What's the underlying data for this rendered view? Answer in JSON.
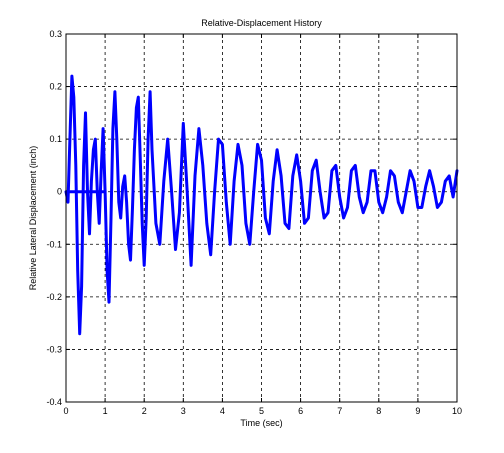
{
  "chart_data": {
    "type": "line",
    "title": "Relative-Displacement History",
    "xlabel": "Time (sec)",
    "ylabel": "Relative Lateral Displacement (inch)",
    "xlim": [
      0,
      10
    ],
    "ylim": [
      -0.4,
      0.3
    ],
    "xticks": [
      0,
      1,
      2,
      3,
      4,
      5,
      6,
      7,
      8,
      9,
      10
    ],
    "yticks": [
      -0.4,
      -0.3,
      -0.2,
      -0.1,
      0,
      0.1,
      0.2,
      0.3
    ],
    "xtick_labels": [
      "0",
      "1",
      "2",
      "3",
      "4",
      "5",
      "6",
      "7",
      "8",
      "9",
      "10"
    ],
    "ytick_labels": [
      "-0.4",
      "-0.3",
      "-0.2",
      "-0.1",
      "0",
      "0.1",
      "0.2",
      "0.3"
    ],
    "grid": true,
    "line_color": "#0000ff",
    "series": [
      {
        "name": "",
        "x": [
          0.0,
          0.05,
          0.1,
          0.15,
          0.2,
          0.25,
          0.3,
          0.35,
          0.4,
          0.45,
          0.5,
          0.55,
          0.6,
          0.65,
          0.7,
          0.75,
          0.8,
          0.85,
          0.9,
          0.95,
          1.0,
          1.05,
          1.1,
          1.15,
          1.2,
          1.25,
          1.3,
          1.35,
          1.4,
          1.45,
          1.5,
          1.55,
          1.6,
          1.65,
          1.7,
          1.75,
          1.8,
          1.85,
          1.9,
          1.95,
          2.0,
          2.05,
          2.1,
          2.15,
          2.2,
          2.3,
          2.4,
          2.5,
          2.6,
          2.7,
          2.8,
          2.9,
          3.0,
          3.1,
          3.2,
          3.3,
          3.4,
          3.5,
          3.6,
          3.7,
          3.8,
          3.9,
          4.0,
          4.1,
          4.2,
          4.3,
          4.4,
          4.5,
          4.6,
          4.7,
          4.8,
          4.9,
          5.0,
          5.1,
          5.2,
          5.3,
          5.4,
          5.5,
          5.6,
          5.7,
          5.8,
          5.9,
          6.0,
          6.1,
          6.2,
          6.3,
          6.4,
          6.5,
          6.6,
          6.7,
          6.8,
          6.9,
          7.0,
          7.1,
          7.2,
          7.3,
          7.4,
          7.5,
          7.6,
          7.7,
          7.8,
          7.9,
          8.0,
          8.1,
          8.2,
          8.3,
          8.4,
          8.5,
          8.6,
          8.7,
          8.8,
          8.9,
          9.0,
          9.1,
          9.2,
          9.3,
          9.4,
          9.5,
          9.6,
          9.7,
          9.8,
          9.9,
          10.0
        ],
        "y": [
          0.0,
          -0.02,
          0.1,
          0.22,
          0.18,
          0.05,
          -0.15,
          -0.27,
          -0.18,
          0.05,
          0.15,
          0.0,
          -0.08,
          0.02,
          0.08,
          0.1,
          0.0,
          -0.06,
          0.04,
          0.12,
          0.0,
          -0.15,
          -0.21,
          -0.05,
          0.12,
          0.19,
          0.1,
          -0.02,
          -0.05,
          0.01,
          0.03,
          -0.02,
          -0.1,
          -0.13,
          -0.03,
          0.08,
          0.16,
          0.18,
          0.06,
          -0.06,
          -0.14,
          -0.05,
          0.1,
          0.19,
          0.08,
          -0.06,
          -0.1,
          0.02,
          0.1,
          0.0,
          -0.11,
          -0.04,
          0.13,
          0.0,
          -0.14,
          0.03,
          0.12,
          0.05,
          -0.06,
          -0.12,
          0.0,
          0.1,
          0.09,
          -0.02,
          -0.1,
          0.02,
          0.09,
          0.05,
          -0.06,
          -0.1,
          0.0,
          0.09,
          0.06,
          -0.05,
          -0.08,
          0.02,
          0.08,
          0.03,
          -0.06,
          -0.07,
          0.03,
          0.07,
          0.02,
          -0.06,
          -0.05,
          0.04,
          0.06,
          0.0,
          -0.05,
          -0.04,
          0.04,
          0.05,
          -0.01,
          -0.05,
          -0.03,
          0.04,
          0.05,
          -0.01,
          -0.04,
          -0.02,
          0.04,
          0.04,
          -0.02,
          -0.04,
          -0.01,
          0.04,
          0.03,
          -0.02,
          -0.04,
          0.0,
          0.04,
          0.02,
          -0.03,
          -0.03,
          0.01,
          0.04,
          0.01,
          -0.03,
          -0.02,
          0.02,
          0.03,
          -0.01,
          0.04
        ]
      }
    ]
  }
}
